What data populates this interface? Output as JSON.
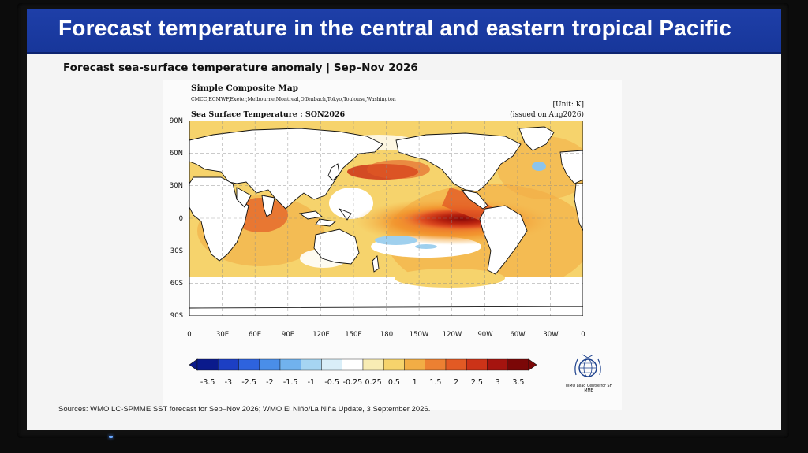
{
  "slide": {
    "title": "Forecast temperature in the central and eastern tropical Pacific",
    "subtitle": "Forecast sea-surface temperature anomaly | Sep–Nov 2026",
    "sources": "Sources: WMO LC-SPMME SST forecast for Sep–Nov 2026; WMO El Niño/La Niña Update, 3 September 2026."
  },
  "figure": {
    "title": "Simple Composite Map",
    "centres": "CMCC,ECMWF,Exeter,Melbourne,Montreal,Offenbach,Tokyo,Toulouse,Washington",
    "map_title": "Sea Surface Temperature : SON2026",
    "unit": "[Unit: K]",
    "issued": "(issued on Aug2026)",
    "lat_ticks": [
      "90N",
      "60N",
      "30N",
      "0",
      "30S",
      "60S",
      "90S"
    ],
    "lon_ticks": [
      "0",
      "30E",
      "60E",
      "90E",
      "120E",
      "150E",
      "180",
      "150W",
      "120W",
      "90W",
      "60W",
      "30W",
      "0"
    ],
    "colorbar_labels": [
      "-3.5",
      "-3",
      "-2.5",
      "-2",
      "-1.5",
      "-1",
      "-0.5",
      "-0.25",
      "0.25",
      "0.5",
      "1",
      "1.5",
      "2",
      "2.5",
      "3",
      "3.5"
    ],
    "colorbar_colors": [
      "#0a1a8c",
      "#1c3fc4",
      "#2e63de",
      "#4a8ee8",
      "#71b2ee",
      "#a6d5f2",
      "#d9eef8",
      "#ffffff",
      "#f8ecb4",
      "#f6d36c",
      "#f2ad45",
      "#ec8032",
      "#e25a24",
      "#cc3318",
      "#a5140f",
      "#7b0707"
    ],
    "logo_caption": "WMO Lead Centre for SF MME",
    "logo_icon": "wmo-emblem-icon"
  },
  "chart_data": {
    "type": "heatmap",
    "title": "Sea Surface Temperature : SON2026",
    "unit": "K",
    "region": "global",
    "lat_range": [
      -90,
      90
    ],
    "lon_range": [
      0,
      360
    ],
    "colorbar_levels": [
      -3.5,
      -3,
      -2.5,
      -2,
      -1.5,
      -1,
      -0.5,
      -0.25,
      0.25,
      0.5,
      1,
      1.5,
      2,
      2.5,
      3,
      3.5
    ],
    "features": [
      {
        "region": "equatorial central-eastern Pacific (180–80W, 10S–10N)",
        "anomaly_range": [
          1.5,
          3.5
        ]
      },
      {
        "region": "North Pacific near Japan (~40N, 140E–180)",
        "anomaly_range": [
          1.5,
          2.5
        ]
      },
      {
        "region": "South Pacific (~20S, 170W–140W)",
        "anomaly_range": [
          -1,
          -0.5
        ]
      },
      {
        "region": "North Atlantic south of Greenland (~55N, 40W)",
        "anomaly_range": [
          -1,
          -0.5
        ]
      }
    ]
  }
}
